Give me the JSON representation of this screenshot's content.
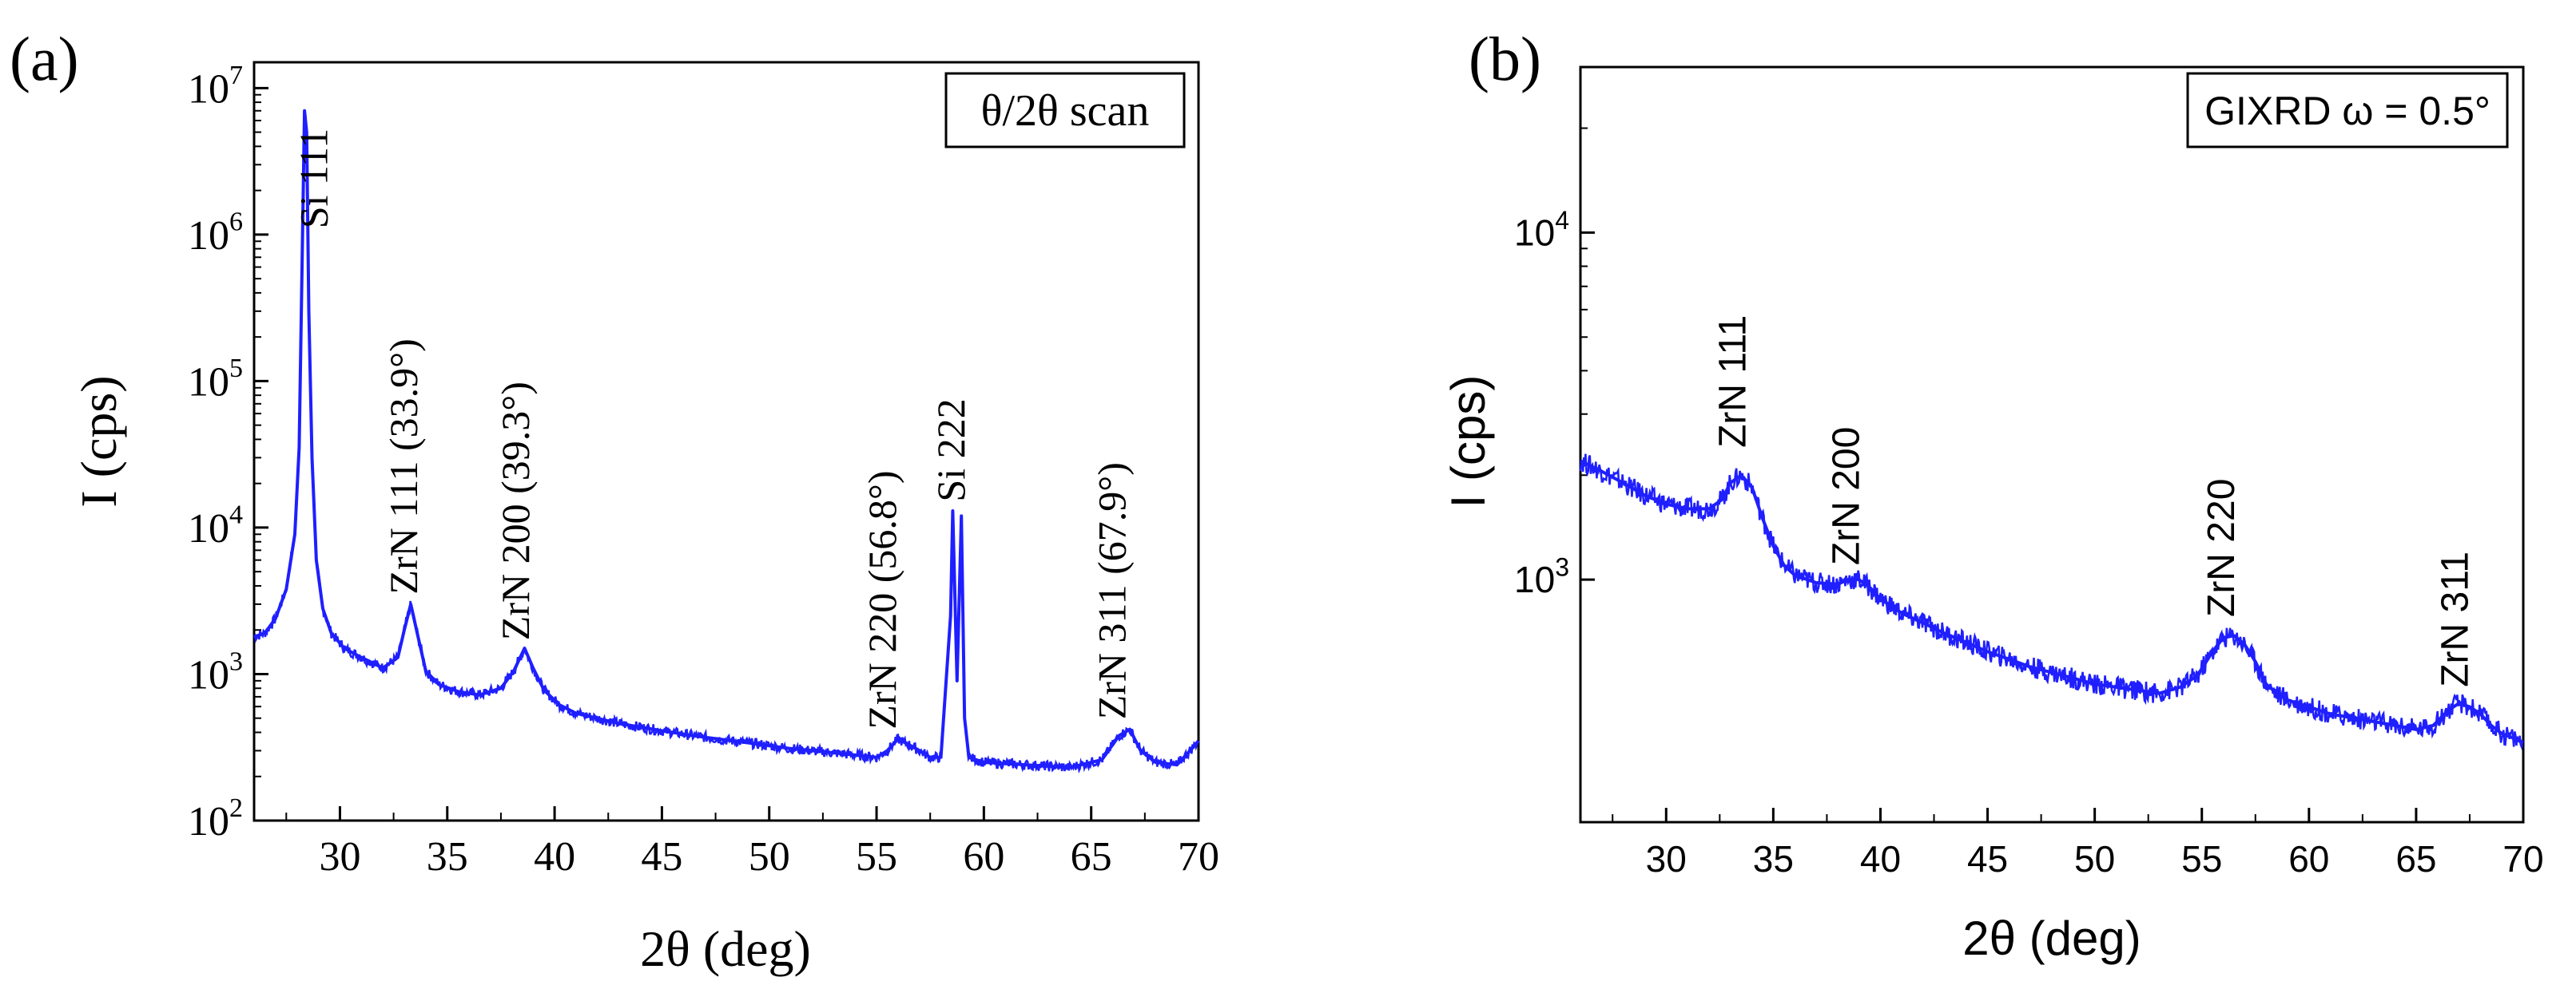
{
  "chart_data": [
    {
      "panel_label": "(a)",
      "type": "line",
      "y_scale": "log",
      "title": "θ/2θ scan",
      "xlabel": "2θ (deg)",
      "ylabel": "I (cps)",
      "xlim": [
        26,
        70
      ],
      "ylim": [
        100,
        15000000
      ],
      "x_ticks": [
        30,
        35,
        40,
        45,
        50,
        55,
        60,
        65,
        70
      ],
      "y_ticks": [
        {
          "value": 100,
          "base": "10",
          "exp": "2"
        },
        {
          "value": 1000,
          "base": "10",
          "exp": "3"
        },
        {
          "value": 10000,
          "base": "10",
          "exp": "4"
        },
        {
          "value": 100000,
          "base": "10",
          "exp": "5"
        },
        {
          "value": 1000000,
          "base": "10",
          "exp": "6"
        },
        {
          "value": 10000000,
          "base": "10",
          "exp": "7"
        }
      ],
      "series": [
        {
          "name": "θ/2θ scan",
          "color": "#1f1fff",
          "x": [
            26.0,
            26.5,
            27.0,
            27.5,
            27.9,
            28.1,
            28.25,
            28.35,
            28.45,
            28.55,
            28.7,
            28.9,
            29.2,
            29.6,
            30.2,
            31.0,
            32.0,
            32.7,
            33.0,
            33.3,
            33.6,
            34.0,
            34.6,
            35.5,
            36.5,
            37.5,
            38.1,
            38.6,
            39.0,
            39.5,
            40.2,
            41.0,
            43.0,
            45.0,
            47.0,
            49.0,
            51.0,
            53.0,
            55.0,
            55.5,
            56.0,
            56.5,
            57.0,
            57.5,
            58.0,
            58.45,
            58.55,
            58.75,
            58.95,
            59.1,
            59.3,
            60.0,
            62.0,
            64.0,
            65.5,
            66.3,
            66.8,
            67.3,
            68.0,
            69.0,
            69.6,
            70.0
          ],
          "values": [
            1800,
            1900,
            2400,
            3800,
            9000,
            35000,
            800000,
            7000000,
            5000000,
            300000,
            30000,
            6000,
            2800,
            1900,
            1500,
            1300,
            1100,
            1300,
            2000,
            3000,
            1900,
            1050,
            850,
            760,
            720,
            800,
            1050,
            1500,
            1100,
            780,
            620,
            540,
            460,
            410,
            370,
            340,
            310,
            290,
            270,
            300,
            360,
            330,
            300,
            270,
            270,
            2500,
            13000,
            900,
            12000,
            500,
            270,
            250,
            240,
            230,
            260,
            380,
            420,
            300,
            250,
            240,
            300,
            350
          ]
        }
      ],
      "annotations": [
        {
          "text": "Si 111",
          "x": 29.4,
          "y": 1100000
        },
        {
          "text": "ZrN 111 (33.9°)",
          "x": 33.6,
          "y": 3500
        },
        {
          "text": "ZrN 200 (39.3°)",
          "x": 38.8,
          "y": 1700
        },
        {
          "text": "ZrN 220 (56.8°)",
          "x": 55.9,
          "y": 420
        },
        {
          "text": "Si 222",
          "x": 59.1,
          "y": 15000
        },
        {
          "text": "ZrN 311 (67.9°)",
          "x": 66.6,
          "y": 490
        }
      ]
    },
    {
      "panel_label": "(b)",
      "type": "line",
      "y_scale": "log",
      "title": "GIXRD ω = 0.5°",
      "xlabel": "2θ (deg)",
      "ylabel": "I (cps)",
      "xlim": [
        26,
        70
      ],
      "ylim": [
        200,
        30000
      ],
      "x_ticks": [
        30,
        35,
        40,
        45,
        50,
        55,
        60,
        65,
        70
      ],
      "y_ticks": [
        {
          "value": 1000,
          "base": "10",
          "exp": "3"
        },
        {
          "value": 10000,
          "base": "10",
          "exp": "4"
        }
      ],
      "series": [
        {
          "name": "GIXRD ω = 0.5°",
          "color": "#1f1fff",
          "x": [
            26.0,
            27.0,
            28.0,
            29.0,
            30.0,
            31.0,
            32.0,
            32.6,
            33.0,
            33.5,
            34.0,
            34.5,
            35.0,
            35.5,
            36.0,
            37.0,
            38.0,
            38.5,
            39.0,
            39.5,
            40.0,
            40.5,
            41.0,
            42.0,
            43.0,
            44.0,
            45.0,
            46.0,
            47.0,
            48.0,
            49.0,
            50.0,
            51.0,
            52.0,
            53.0,
            54.0,
            54.8,
            55.5,
            56.0,
            56.5,
            57.0,
            57.5,
            58.0,
            58.5,
            59.0,
            60.0,
            61.0,
            62.0,
            63.0,
            64.0,
            65.0,
            65.8,
            66.5,
            67.0,
            67.5,
            68.0,
            68.5,
            69.0,
            69.5,
            70.0
          ],
          "values": [
            2200,
            2050,
            1900,
            1750,
            1650,
            1600,
            1600,
            1700,
            1900,
            2000,
            1850,
            1500,
            1250,
            1100,
            1030,
            980,
            970,
            1000,
            1000,
            950,
            880,
            840,
            800,
            750,
            700,
            660,
            620,
            590,
            560,
            540,
            520,
            500,
            490,
            480,
            470,
            490,
            530,
            620,
            680,
            690,
            650,
            580,
            500,
            470,
            450,
            430,
            410,
            400,
            390,
            380,
            370,
            380,
            420,
            440,
            430,
            410,
            380,
            360,
            350,
            340
          ]
        }
      ],
      "annotations": [
        {
          "text": "ZrN 111",
          "x": 33.7,
          "y": 2400
        },
        {
          "text": "ZrN 200",
          "x": 39.0,
          "y": 1100
        },
        {
          "text": "ZrN 220",
          "x": 56.5,
          "y": 780
        },
        {
          "text": "ZrN 311",
          "x": 67.4,
          "y": 490
        }
      ]
    }
  ]
}
